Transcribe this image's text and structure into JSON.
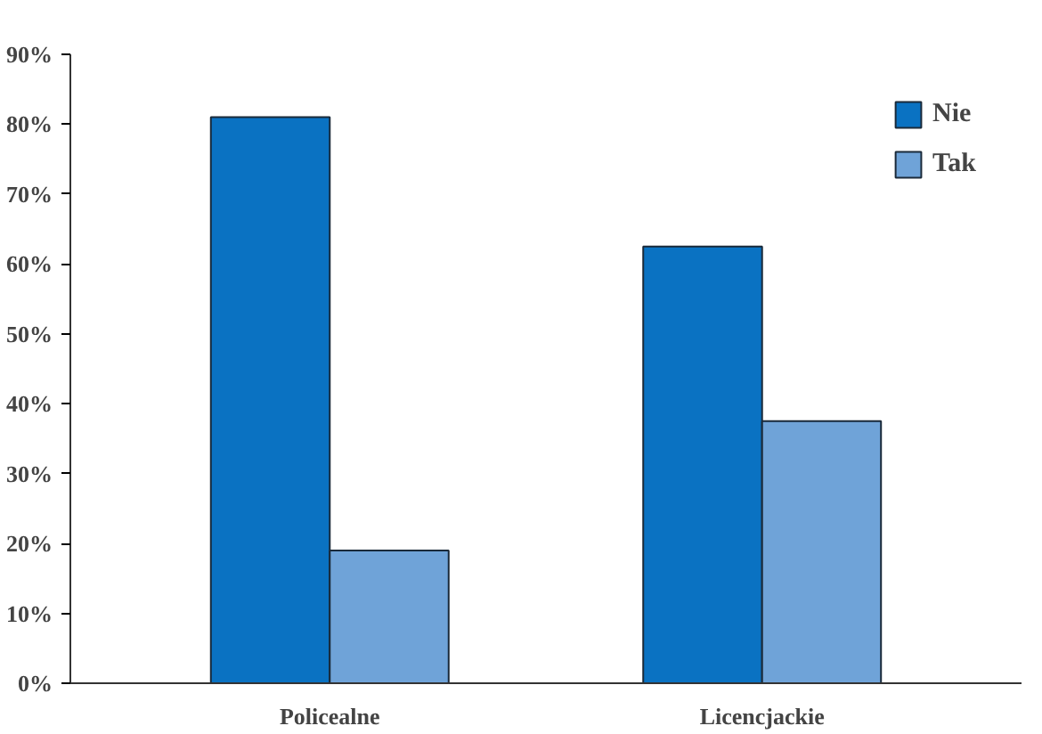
{
  "chart_data": {
    "type": "bar",
    "categories": [
      "Policealne",
      "Licencjackie"
    ],
    "series": [
      {
        "name": "Nie",
        "color": "#0a72c2",
        "values": [
          81,
          62.5
        ]
      },
      {
        "name": "Tak",
        "color": "#6fa3d8",
        "values": [
          19,
          37.5
        ]
      }
    ],
    "ylim": [
      0,
      90
    ],
    "yticks": [
      {
        "value": 0,
        "label": "0%"
      },
      {
        "value": 10,
        "label": "10%"
      },
      {
        "value": 20,
        "label": "20%"
      },
      {
        "value": 30,
        "label": "30%"
      },
      {
        "value": 40,
        "label": "40%"
      },
      {
        "value": 50,
        "label": "50%"
      },
      {
        "value": 60,
        "label": "60%"
      },
      {
        "value": 70,
        "label": "70%"
      },
      {
        "value": 80,
        "label": "80%"
      },
      {
        "value": 90,
        "label": "90%"
      }
    ],
    "grid": false,
    "legend": "top right"
  }
}
